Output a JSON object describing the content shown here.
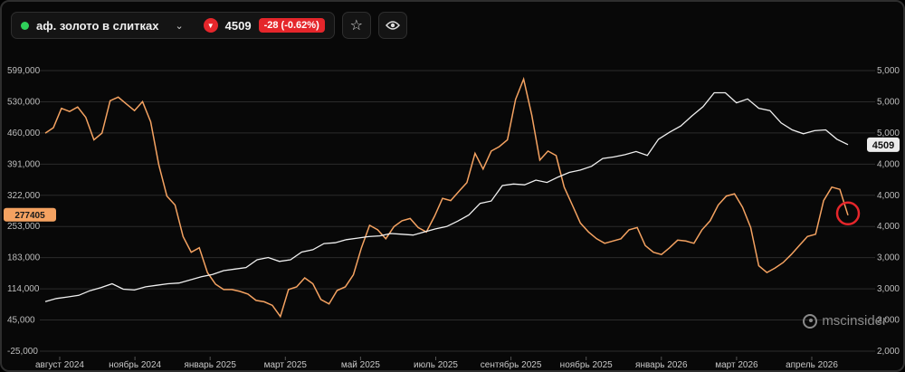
{
  "header": {
    "ticker_name": "аф. золото в слитках",
    "price": "4509",
    "change": "-28 (-0.62%)",
    "down_arrow": "▼",
    "chevron": "⌄",
    "star_icon": "☆",
    "eye_icon": "👁"
  },
  "brand": "mscinsider",
  "colors": {
    "orange": "#f4a261",
    "white": "#f0f0f0",
    "red": "#e5262b",
    "green": "#2fcf5a"
  },
  "chart_data": {
    "type": "line",
    "left_axis": {
      "ticks": [
        "599,000",
        "530,000",
        "460,000",
        "391,000",
        "322,000",
        "253,000",
        "183,000",
        "114,000",
        "45,000",
        "-25,000"
      ],
      "range": [
        -25000,
        599000
      ]
    },
    "right_axis": {
      "ticks": [
        "5,000",
        "5,000",
        "5,000",
        "4,000",
        "4,000",
        "4,000",
        "3,000",
        "3,000",
        "2,000",
        "2,000"
      ]
    },
    "x_labels": [
      "август 2024",
      "ноябрь 2024",
      "январь 2025",
      "март 2025",
      "май 2025",
      "июль 2025",
      "сентябрь 2025",
      "ноябрь 2025",
      "январь 2026",
      "март 2026",
      "апрель 2026"
    ],
    "orange_label": "277405",
    "white_label": "4509",
    "series": [
      {
        "color": "orange",
        "axis": "left",
        "values": [
          460000,
          472000,
          515000,
          508000,
          518000,
          495000,
          445000,
          460000,
          532000,
          540000,
          525000,
          510000,
          530000,
          485000,
          390000,
          320000,
          300000,
          230000,
          195000,
          205000,
          150000,
          124000,
          112000,
          112000,
          108000,
          102000,
          88000,
          85000,
          77000,
          52000,
          112000,
          118000,
          138000,
          125000,
          90000,
          80000,
          110000,
          118000,
          145000,
          205000,
          255000,
          245000,
          225000,
          252000,
          265000,
          270000,
          250000,
          240000,
          275000,
          315000,
          310000,
          330000,
          350000,
          415000,
          380000,
          420000,
          430000,
          445000,
          535000,
          580000,
          500000,
          400000,
          420000,
          410000,
          340000,
          300000,
          260000,
          240000,
          225000,
          215000,
          220000,
          225000,
          245000,
          250000,
          210000,
          195000,
          190000,
          205000,
          222000,
          220000,
          215000,
          245000,
          265000,
          300000,
          320000,
          325000,
          295000,
          250000,
          165000,
          150000,
          160000,
          172000,
          190000,
          210000,
          230000,
          235000,
          310000,
          340000,
          335000,
          277405
        ]
      },
      {
        "color": "white",
        "axis": "right",
        "values": [
          2480,
          2520,
          2540,
          2560,
          2620,
          2660,
          2710,
          2640,
          2630,
          2670,
          2690,
          2710,
          2720,
          2760,
          2800,
          2830,
          2880,
          2900,
          2920,
          3020,
          3050,
          3000,
          3020,
          3120,
          3150,
          3230,
          3240,
          3280,
          3300,
          3320,
          3330,
          3360,
          3350,
          3340,
          3380,
          3420,
          3450,
          3520,
          3600,
          3750,
          3780,
          3980,
          4000,
          3990,
          4050,
          4020,
          4090,
          4150,
          4180,
          4230,
          4330,
          4350,
          4380,
          4420,
          4370,
          4580,
          4670,
          4750,
          4880,
          5000,
          5180,
          5180,
          5050,
          5100,
          4980,
          4950,
          4790,
          4700,
          4650,
          4690,
          4700,
          4580,
          4509
        ]
      }
    ]
  }
}
